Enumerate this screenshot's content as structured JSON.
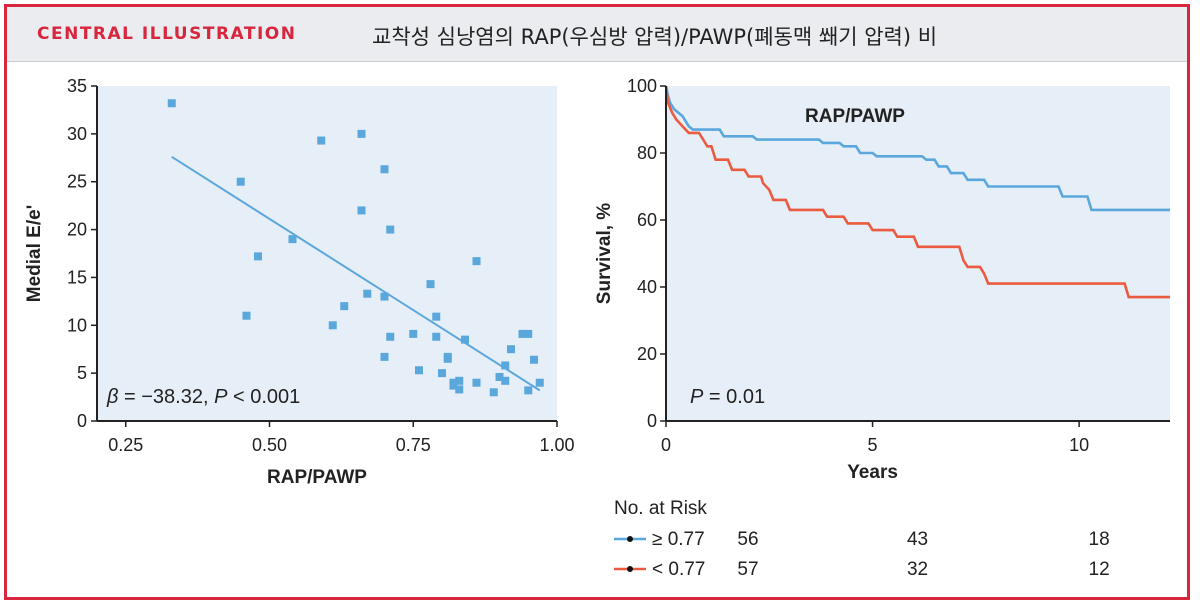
{
  "header": {
    "label": "CENTRAL ILLUSTRATION",
    "title": "교착성 심낭염의 RAP(우심방 압력)/PAWP(폐동맥 쐐기 압력) 비"
  },
  "colors": {
    "accent": "#d7263d",
    "high": "#5aa7dc",
    "low": "#ea5b3f",
    "plot_bg": "#e6eef8"
  },
  "chart_data": [
    {
      "type": "scatter",
      "xlabel": "RAP/PAWP",
      "ylabel": "Medial E/e'",
      "xlim": [
        0.2,
        1.0
      ],
      "ylim": [
        0,
        35
      ],
      "xticks": [
        "0.25",
        "0.50",
        "0.75",
        "1.00"
      ],
      "xtick_values": [
        0.25,
        0.5,
        0.75,
        1.0
      ],
      "yticks": [
        "0",
        "5",
        "10",
        "15",
        "20",
        "25",
        "30",
        "35"
      ],
      "ytick_values": [
        0,
        5,
        10,
        15,
        20,
        25,
        30,
        35
      ],
      "annotation": {
        "beta": "β",
        "beta_text": " = −38.32, ",
        "p": "P",
        "p_text": " < 0.001"
      },
      "fit_line": [
        [
          0.33,
          27.6
        ],
        [
          0.97,
          3.2
        ]
      ],
      "points": [
        [
          0.33,
          33.2
        ],
        [
          0.45,
          25.0
        ],
        [
          0.46,
          11.0
        ],
        [
          0.48,
          17.2
        ],
        [
          0.54,
          19.0
        ],
        [
          0.59,
          29.3
        ],
        [
          0.61,
          10.0
        ],
        [
          0.63,
          12.0
        ],
        [
          0.66,
          30.0
        ],
        [
          0.66,
          22.0
        ],
        [
          0.67,
          13.3
        ],
        [
          0.7,
          26.3
        ],
        [
          0.7,
          13.0
        ],
        [
          0.7,
          6.7
        ],
        [
          0.71,
          20.0
        ],
        [
          0.71,
          8.8
        ],
        [
          0.75,
          9.1
        ],
        [
          0.76,
          5.3
        ],
        [
          0.78,
          14.3
        ],
        [
          0.79,
          10.9
        ],
        [
          0.79,
          8.8
        ],
        [
          0.8,
          5.0
        ],
        [
          0.81,
          6.7
        ],
        [
          0.81,
          6.5
        ],
        [
          0.82,
          3.7
        ],
        [
          0.82,
          4.0
        ],
        [
          0.83,
          4.2
        ],
        [
          0.83,
          3.3
        ],
        [
          0.84,
          8.5
        ],
        [
          0.86,
          16.7
        ],
        [
          0.86,
          4.0
        ],
        [
          0.89,
          3.0
        ],
        [
          0.9,
          4.6
        ],
        [
          0.91,
          5.8
        ],
        [
          0.91,
          4.2
        ],
        [
          0.92,
          7.5
        ],
        [
          0.94,
          9.1
        ],
        [
          0.95,
          9.1
        ],
        [
          0.95,
          3.2
        ],
        [
          0.96,
          6.4
        ],
        [
          0.97,
          4.0
        ]
      ]
    },
    {
      "type": "line",
      "title": "RAP/PAWP",
      "xlabel": "Years",
      "ylabel": "Survival, %",
      "xlim": [
        0,
        12.2
      ],
      "ylim": [
        0,
        100
      ],
      "xticks": [
        "0",
        "5",
        "10"
      ],
      "xtick_values": [
        0,
        5,
        10
      ],
      "yticks": [
        "0",
        "20",
        "40",
        "60",
        "80",
        "100"
      ],
      "ytick_values": [
        0,
        20,
        40,
        60,
        80,
        100
      ],
      "annotation": {
        "p": "P",
        "p_text": " = 0.01"
      },
      "series": [
        {
          "name": "≥ 0.77",
          "color": "#5aa7dc",
          "points": [
            [
              0,
              100
            ],
            [
              0.05,
              97
            ],
            [
              0.1,
              95
            ],
            [
              0.2,
              93
            ],
            [
              0.3,
              92
            ],
            [
              0.4,
              91
            ],
            [
              0.5,
              89
            ],
            [
              0.55,
              88
            ],
            [
              0.65,
              87
            ],
            [
              1.3,
              87
            ],
            [
              1.4,
              85
            ],
            [
              2.1,
              85
            ],
            [
              2.2,
              84
            ],
            [
              3.7,
              84
            ],
            [
              3.8,
              83
            ],
            [
              4.2,
              83
            ],
            [
              4.3,
              82
            ],
            [
              4.6,
              82
            ],
            [
              4.7,
              80
            ],
            [
              5.0,
              80
            ],
            [
              5.1,
              79
            ],
            [
              6.2,
              79
            ],
            [
              6.3,
              78
            ],
            [
              6.5,
              78
            ],
            [
              6.6,
              76
            ],
            [
              6.8,
              76
            ],
            [
              6.9,
              74
            ],
            [
              7.2,
              74
            ],
            [
              7.3,
              72
            ],
            [
              7.7,
              72
            ],
            [
              7.8,
              70
            ],
            [
              9.5,
              70
            ],
            [
              9.6,
              67
            ],
            [
              10.2,
              67
            ],
            [
              10.3,
              63
            ],
            [
              12.2,
              63
            ]
          ]
        },
        {
          "name": "< 0.77",
          "color": "#ea5b3f",
          "points": [
            [
              0,
              100
            ],
            [
              0.05,
              95
            ],
            [
              0.15,
              92
            ],
            [
              0.25,
              90
            ],
            [
              0.4,
              88
            ],
            [
              0.55,
              86
            ],
            [
              0.8,
              86
            ],
            [
              0.9,
              84
            ],
            [
              1.0,
              82
            ],
            [
              1.1,
              82
            ],
            [
              1.2,
              78
            ],
            [
              1.5,
              78
            ],
            [
              1.6,
              75
            ],
            [
              1.9,
              75
            ],
            [
              2.0,
              73
            ],
            [
              2.3,
              73
            ],
            [
              2.35,
              71
            ],
            [
              2.5,
              69
            ],
            [
              2.6,
              66
            ],
            [
              2.9,
              66
            ],
            [
              3.0,
              63
            ],
            [
              3.8,
              63
            ],
            [
              3.9,
              61
            ],
            [
              4.3,
              61
            ],
            [
              4.4,
              59
            ],
            [
              4.9,
              59
            ],
            [
              5.0,
              57
            ],
            [
              5.5,
              57
            ],
            [
              5.6,
              55
            ],
            [
              6.0,
              55
            ],
            [
              6.1,
              52
            ],
            [
              7.1,
              52
            ],
            [
              7.2,
              48
            ],
            [
              7.3,
              46
            ],
            [
              7.6,
              46
            ],
            [
              7.7,
              44
            ],
            [
              7.8,
              41
            ],
            [
              11.1,
              41
            ],
            [
              11.2,
              37
            ],
            [
              12.2,
              37
            ]
          ]
        }
      ]
    }
  ],
  "risk_table": {
    "title": "No. at Risk",
    "rows": [
      {
        "label": "≥ 0.77",
        "color": "#5aa7dc",
        "counts": [
          "56",
          "43",
          "18"
        ]
      },
      {
        "label": "< 0.77",
        "color": "#ea5b3f",
        "counts": [
          "57",
          "32",
          "12"
        ]
      }
    ]
  }
}
